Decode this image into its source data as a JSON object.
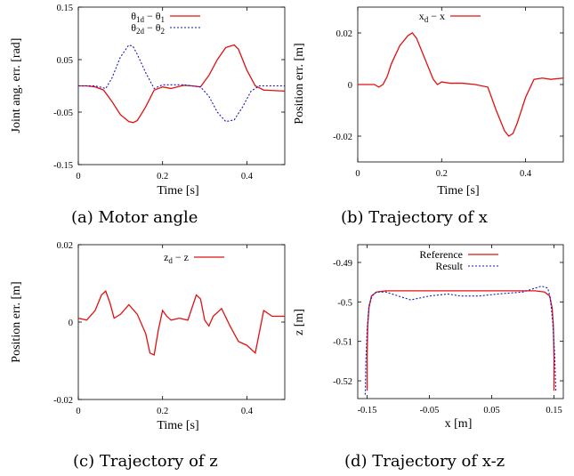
{
  "colors": {
    "red": "#e01010",
    "blue": "#1515c8"
  },
  "chart_data": [
    {
      "id": "a",
      "type": "line",
      "caption": "(a) Motor angle",
      "xlabel": "Time [s]",
      "ylabel": "Joint ang. err. [rad]",
      "xlim": [
        0,
        0.49
      ],
      "ylim": [
        -0.15,
        0.15
      ],
      "xticks": [
        {
          "v": 0,
          "t": "0"
        },
        {
          "v": 0.2,
          "t": "0.2"
        },
        {
          "v": 0.4,
          "t": "0.4"
        }
      ],
      "yticks": [
        {
          "v": 0.15,
          "t": "0.15"
        },
        {
          "v": 0.05,
          "t": "0.05"
        },
        {
          "v": -0.05,
          "t": "-0.05"
        },
        {
          "v": -0.15,
          "t": "-0.15"
        }
      ],
      "legend_position": "top-right",
      "series": [
        {
          "name_main": "θ",
          "name_sub": "1d",
          "name_tail": " − θ",
          "name_sub2": "1",
          "color": "red",
          "dash": "",
          "x": [
            0,
            0.02,
            0.04,
            0.06,
            0.08,
            0.1,
            0.12,
            0.13,
            0.14,
            0.16,
            0.18,
            0.2,
            0.22,
            0.25,
            0.27,
            0.29,
            0.31,
            0.33,
            0.35,
            0.37,
            0.38,
            0.4,
            0.42,
            0.44,
            0.49
          ],
          "y": [
            0,
            0,
            -0.002,
            -0.008,
            -0.03,
            -0.055,
            -0.068,
            -0.07,
            -0.066,
            -0.04,
            -0.008,
            -0.002,
            -0.005,
            0.001,
            0.0,
            -0.002,
            0.02,
            0.05,
            0.073,
            0.078,
            0.07,
            0.03,
            0.0,
            -0.008,
            -0.01
          ]
        },
        {
          "name_main": "θ",
          "name_sub": "2d",
          "name_tail": " − θ",
          "name_sub2": "2",
          "color": "blue",
          "dash": "2,2",
          "x": [
            0,
            0.02,
            0.04,
            0.065,
            0.08,
            0.1,
            0.12,
            0.13,
            0.14,
            0.16,
            0.18,
            0.2,
            0.22,
            0.25,
            0.27,
            0.29,
            0.31,
            0.33,
            0.35,
            0.37,
            0.39,
            0.41,
            0.43,
            0.45,
            0.49
          ],
          "y": [
            0,
            0,
            0,
            -0.005,
            0.015,
            0.055,
            0.078,
            0.075,
            0.06,
            0.025,
            -0.005,
            0.002,
            0.002,
            0.002,
            0,
            -0.002,
            -0.02,
            -0.05,
            -0.068,
            -0.065,
            -0.04,
            -0.01,
            0.0,
            0.0,
            0.0
          ]
        }
      ]
    },
    {
      "id": "b",
      "type": "line",
      "caption": "(b) Trajectory of x",
      "xlabel": "Time [s]",
      "ylabel": "Position err. [m]",
      "xlim": [
        0,
        0.49
      ],
      "ylim": [
        -0.03,
        0.03
      ],
      "xticks": [
        {
          "v": 0,
          "t": "0"
        },
        {
          "v": 0.2,
          "t": "0.2"
        },
        {
          "v": 0.4,
          "t": "0.4"
        }
      ],
      "yticks": [
        {
          "v": 0.02,
          "t": "0.02"
        },
        {
          "v": 0,
          "t": "0"
        },
        {
          "v": -0.02,
          "t": "-0.02"
        }
      ],
      "legend_position": "top-right",
      "series": [
        {
          "name_main": "x",
          "name_sub": "d",
          "name_tail": " − x",
          "name_sub2": "",
          "color": "red",
          "dash": "",
          "x": [
            0,
            0.02,
            0.04,
            0.05,
            0.06,
            0.07,
            0.08,
            0.1,
            0.12,
            0.13,
            0.14,
            0.16,
            0.18,
            0.19,
            0.2,
            0.22,
            0.25,
            0.28,
            0.31,
            0.33,
            0.35,
            0.36,
            0.37,
            0.38,
            0.4,
            0.42,
            0.44,
            0.46,
            0.49
          ],
          "y": [
            0,
            0,
            0,
            -0.001,
            0,
            0.003,
            0.008,
            0.015,
            0.019,
            0.02,
            0.018,
            0.01,
            0.002,
            0,
            0.001,
            0.0005,
            0.0005,
            0.0,
            -0.001,
            -0.01,
            -0.018,
            -0.02,
            -0.019,
            -0.015,
            -0.005,
            0.002,
            0.0025,
            0.002,
            0.0025
          ]
        }
      ]
    },
    {
      "id": "c",
      "type": "line",
      "caption": "(c) Trajectory of z",
      "xlabel": "Time [s]",
      "ylabel": "Position err. [m]",
      "xlim": [
        0,
        0.49
      ],
      "ylim": [
        -0.02,
        0.02
      ],
      "xticks": [
        {
          "v": 0,
          "t": "0"
        },
        {
          "v": 0.2,
          "t": "0.2"
        },
        {
          "v": 0.4,
          "t": "0.4"
        }
      ],
      "yticks": [
        {
          "v": 0.02,
          "t": "0.02"
        },
        {
          "v": 0,
          "t": "0"
        },
        {
          "v": -0.02,
          "t": "-0.02"
        }
      ],
      "legend_position": "top-right",
      "series": [
        {
          "name_main": "z",
          "name_sub": "d",
          "name_tail": " − z",
          "name_sub2": "",
          "color": "red",
          "dash": "",
          "x": [
            0,
            0.02,
            0.04,
            0.055,
            0.065,
            0.075,
            0.085,
            0.1,
            0.12,
            0.14,
            0.16,
            0.17,
            0.18,
            0.19,
            0.2,
            0.21,
            0.22,
            0.24,
            0.26,
            0.28,
            0.29,
            0.3,
            0.31,
            0.32,
            0.34,
            0.36,
            0.38,
            0.4,
            0.42,
            0.44,
            0.46,
            0.49
          ],
          "y": [
            0.001,
            0.0005,
            0.003,
            0.007,
            0.008,
            0.005,
            0.001,
            0.002,
            0.0045,
            0.002,
            -0.003,
            -0.008,
            -0.0085,
            -0.002,
            0.003,
            0.0015,
            0.0005,
            0.001,
            0.0005,
            0.007,
            0.006,
            0.0005,
            -0.001,
            0.0015,
            0.0035,
            -0.001,
            -0.005,
            -0.006,
            -0.008,
            0.003,
            0.0015,
            0.0015
          ]
        }
      ]
    },
    {
      "id": "d",
      "type": "line",
      "caption": "(d) Trajectory of x-z",
      "xlabel": "x [m]",
      "ylabel": "z [m]",
      "xlim": [
        -0.165,
        0.165
      ],
      "ylim": [
        -0.5245,
        -0.4855
      ],
      "xticks": [
        {
          "v": -0.15,
          "t": "-0.15"
        },
        {
          "v": -0.05,
          "t": "-0.05"
        },
        {
          "v": 0.05,
          "t": "0.05"
        },
        {
          "v": 0.15,
          "t": "0.15"
        }
      ],
      "yticks": [
        {
          "v": -0.49,
          "t": "-0.49"
        },
        {
          "v": -0.5,
          "t": "-0.5"
        },
        {
          "v": -0.51,
          "t": "-0.51"
        },
        {
          "v": -0.52,
          "t": "-0.52"
        }
      ],
      "legend_position": "top-right",
      "series": [
        {
          "name_main": "Reference",
          "name_sub": "",
          "name_tail": "",
          "name_sub2": "",
          "color": "red",
          "dash": "",
          "x": [
            -0.15,
            -0.15,
            -0.149,
            -0.147,
            -0.143,
            -0.135,
            -0.12,
            -0.1,
            -0.05,
            0,
            0.05,
            0.1,
            0.12,
            0.135,
            0.143,
            0.147,
            0.149,
            0.15,
            0.15
          ],
          "y": [
            -0.5225,
            -0.514,
            -0.506,
            -0.5015,
            -0.4985,
            -0.4975,
            -0.4972,
            -0.4972,
            -0.4972,
            -0.4972,
            -0.4972,
            -0.4972,
            -0.4972,
            -0.4975,
            -0.4985,
            -0.5015,
            -0.506,
            -0.514,
            -0.5225
          ]
        },
        {
          "name_main": "Result",
          "name_sub": "",
          "name_tail": "",
          "name_sub2": "",
          "color": "blue",
          "dash": "2,2",
          "x": [
            -0.153,
            -0.152,
            -0.15,
            -0.147,
            -0.142,
            -0.135,
            -0.12,
            -0.1,
            -0.08,
            -0.05,
            -0.02,
            0,
            0.03,
            0.06,
            0.1,
            0.12,
            0.13,
            0.14,
            0.144,
            0.148,
            0.151,
            0.153
          ],
          "y": [
            -0.5235,
            -0.515,
            -0.507,
            -0.501,
            -0.4985,
            -0.4975,
            -0.4975,
            -0.4985,
            -0.4995,
            -0.4985,
            -0.498,
            -0.4985,
            -0.4985,
            -0.498,
            -0.4975,
            -0.4965,
            -0.496,
            -0.4965,
            -0.499,
            -0.505,
            -0.513,
            -0.5225
          ]
        }
      ]
    }
  ]
}
